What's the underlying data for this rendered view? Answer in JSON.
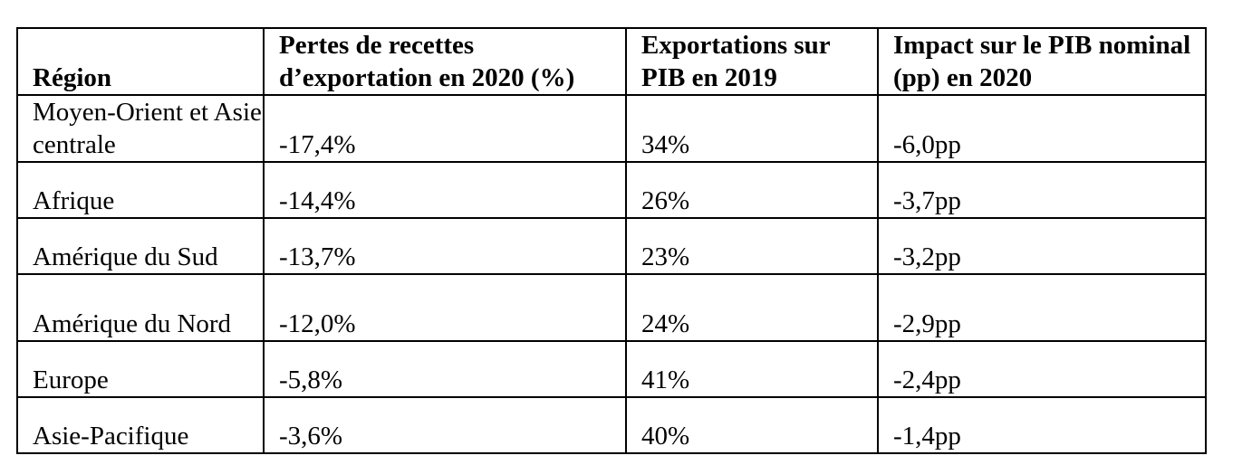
{
  "table": {
    "headers": [
      "Région",
      "Pertes de recettes d’exportation en 2020 (%)",
      "Exportations sur PIB en 2019",
      "Impact sur le PIB nominal (pp) en 2020"
    ],
    "rows": [
      {
        "region": "Moyen-Orient et Asie centrale",
        "pertes": "-17,4%",
        "exportations": "34%",
        "impact": "-6,0pp"
      },
      {
        "region": "Afrique",
        "pertes": "-14,4%",
        "exportations": "26%",
        "impact": "-3,7pp"
      },
      {
        "region": "Amérique du Sud",
        "pertes": "-13,7%",
        "exportations": "23%",
        "impact": "-3,2pp"
      },
      {
        "region": "Amérique du Nord",
        "pertes": "-12,0%",
        "exportations": "24%",
        "impact": "-2,9pp"
      },
      {
        "region": "Europe",
        "pertes": "-5,8%",
        "exportations": "41%",
        "impact": "-2,4pp"
      },
      {
        "region": "Asie-Pacifique",
        "pertes": "-3,6%",
        "exportations": "40%",
        "impact": "-1,4pp"
      }
    ]
  }
}
